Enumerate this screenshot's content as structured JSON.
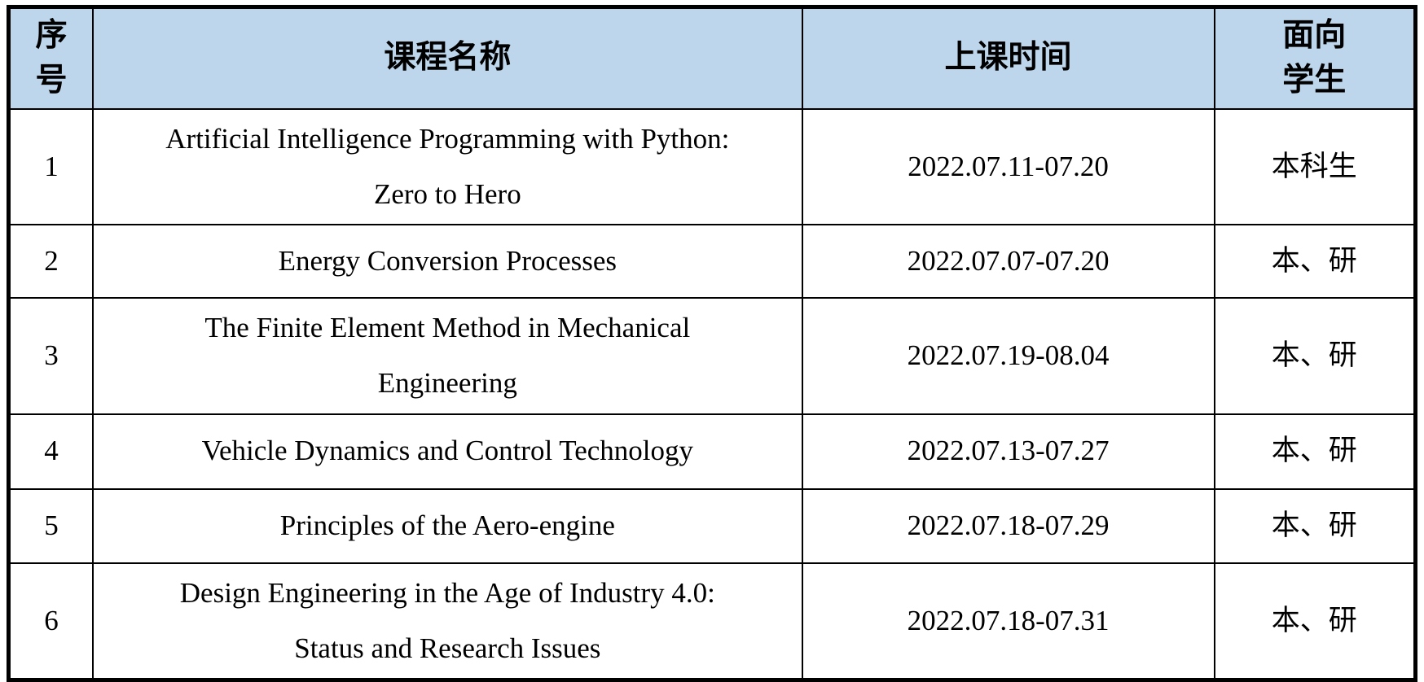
{
  "table": {
    "title": "summer course schedule",
    "columns": [
      {
        "key": "index",
        "label": "序\n号"
      },
      {
        "key": "course",
        "label": "课程名称"
      },
      {
        "key": "time",
        "label": "上课时间"
      },
      {
        "key": "students",
        "label": "面向\n学生"
      }
    ],
    "rows": [
      {
        "index": "1",
        "course": "Artificial Intelligence Programming with Python:\nZero to Hero",
        "time": "2022.07.11-07.20",
        "students": "本科生"
      },
      {
        "index": "2",
        "course": "Energy Conversion Processes",
        "time": "2022.07.07-07.20",
        "students": "本、研"
      },
      {
        "index": "3",
        "course": "The Finite Element Method in Mechanical\nEngineering",
        "time": "2022.07.19-08.04",
        "students": "本、研"
      },
      {
        "index": "4",
        "course": "Vehicle Dynamics and Control Technology",
        "time": "2022.07.13-07.27",
        "students": "本、研"
      },
      {
        "index": "5",
        "course": "Principles of the Aero-engine",
        "time": "2022.07.18-07.29",
        "students": "本、研"
      },
      {
        "index": "6",
        "course": "Design Engineering in the Age of Industry 4.0:\nStatus and Research Issues",
        "time": "2022.07.18-07.31",
        "students": "本、研"
      }
    ]
  },
  "colors": {
    "header_bg": "#BDD6EC",
    "border_color": "#000000",
    "text_color": "#000000",
    "page_bg": "#FFFFFF"
  }
}
